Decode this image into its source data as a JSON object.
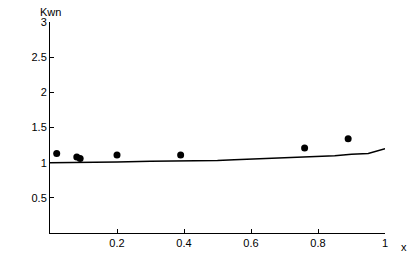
{
  "chart_data": {
    "type": "line",
    "x_label": "x",
    "y_label": "Kwn",
    "xlim": [
      0,
      1
    ],
    "ylim": [
      0,
      3
    ],
    "xticks": [
      0.2,
      0.4,
      0.6,
      0.8,
      1
    ],
    "yticks": [
      0.5,
      1,
      1.5,
      2,
      2.5,
      3
    ],
    "grid": false,
    "series": [
      {
        "type": "line",
        "color": "#000000",
        "line_style": "solid",
        "x": [
          0,
          0.1,
          0.2,
          0.3,
          0.4,
          0.5,
          0.55,
          0.6,
          0.7,
          0.8,
          0.85,
          0.9,
          0.95,
          1
        ],
        "values": [
          1.0,
          1.0,
          1.01,
          1.02,
          1.02,
          1.03,
          1.04,
          1.05,
          1.06,
          1.08,
          1.1,
          1.12,
          1.13,
          1.2
        ]
      },
      {
        "type": "scatter",
        "color": "#000000",
        "marker": "circle",
        "x": [
          0.02,
          0.08,
          0.09,
          0.2,
          0.39,
          0.76,
          0.89
        ],
        "values": [
          1.13,
          1.08,
          1.06,
          1.11,
          1.11,
          1.21,
          1.34
        ]
      }
    ]
  }
}
